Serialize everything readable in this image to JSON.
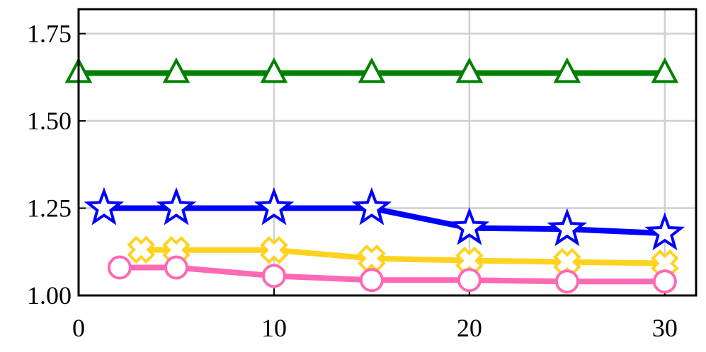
{
  "chart_data": {
    "type": "line",
    "xlim": [
      0,
      31.6
    ],
    "xticks": [
      0,
      10,
      20,
      30
    ],
    "ylim": [
      1.0,
      1.82
    ],
    "yticks": [
      {
        "value": 1.0,
        "label": "1.00"
      },
      1.25,
      {
        "value": 1.5,
        "label": "1.50"
      },
      1.75
    ],
    "grid": true,
    "series": [
      {
        "color": "#008000",
        "marker": "triangle",
        "x": [
          0,
          5,
          10,
          15,
          20,
          25,
          30
        ],
        "values": [
          1.637,
          1.637,
          1.637,
          1.637,
          1.637,
          1.637,
          1.637
        ]
      },
      {
        "color": "#0000ff",
        "marker": "star",
        "x": [
          1.3,
          5,
          10,
          15,
          20,
          25,
          30
        ],
        "values": [
          1.25,
          1.25,
          1.25,
          1.25,
          1.193,
          1.19,
          1.178
        ]
      },
      {
        "color": "#ffd21f",
        "marker": "x",
        "x": [
          3.2,
          5,
          10,
          15,
          20,
          25,
          30
        ],
        "values": [
          1.131,
          1.13,
          1.13,
          1.106,
          1.1,
          1.096,
          1.092
        ]
      },
      {
        "color": "#ff69b4",
        "marker": "circle",
        "x": [
          2.1,
          5,
          10,
          15,
          20,
          25,
          30
        ],
        "values": [
          1.08,
          1.08,
          1.056,
          1.044,
          1.044,
          1.04,
          1.04
        ]
      }
    ]
  }
}
